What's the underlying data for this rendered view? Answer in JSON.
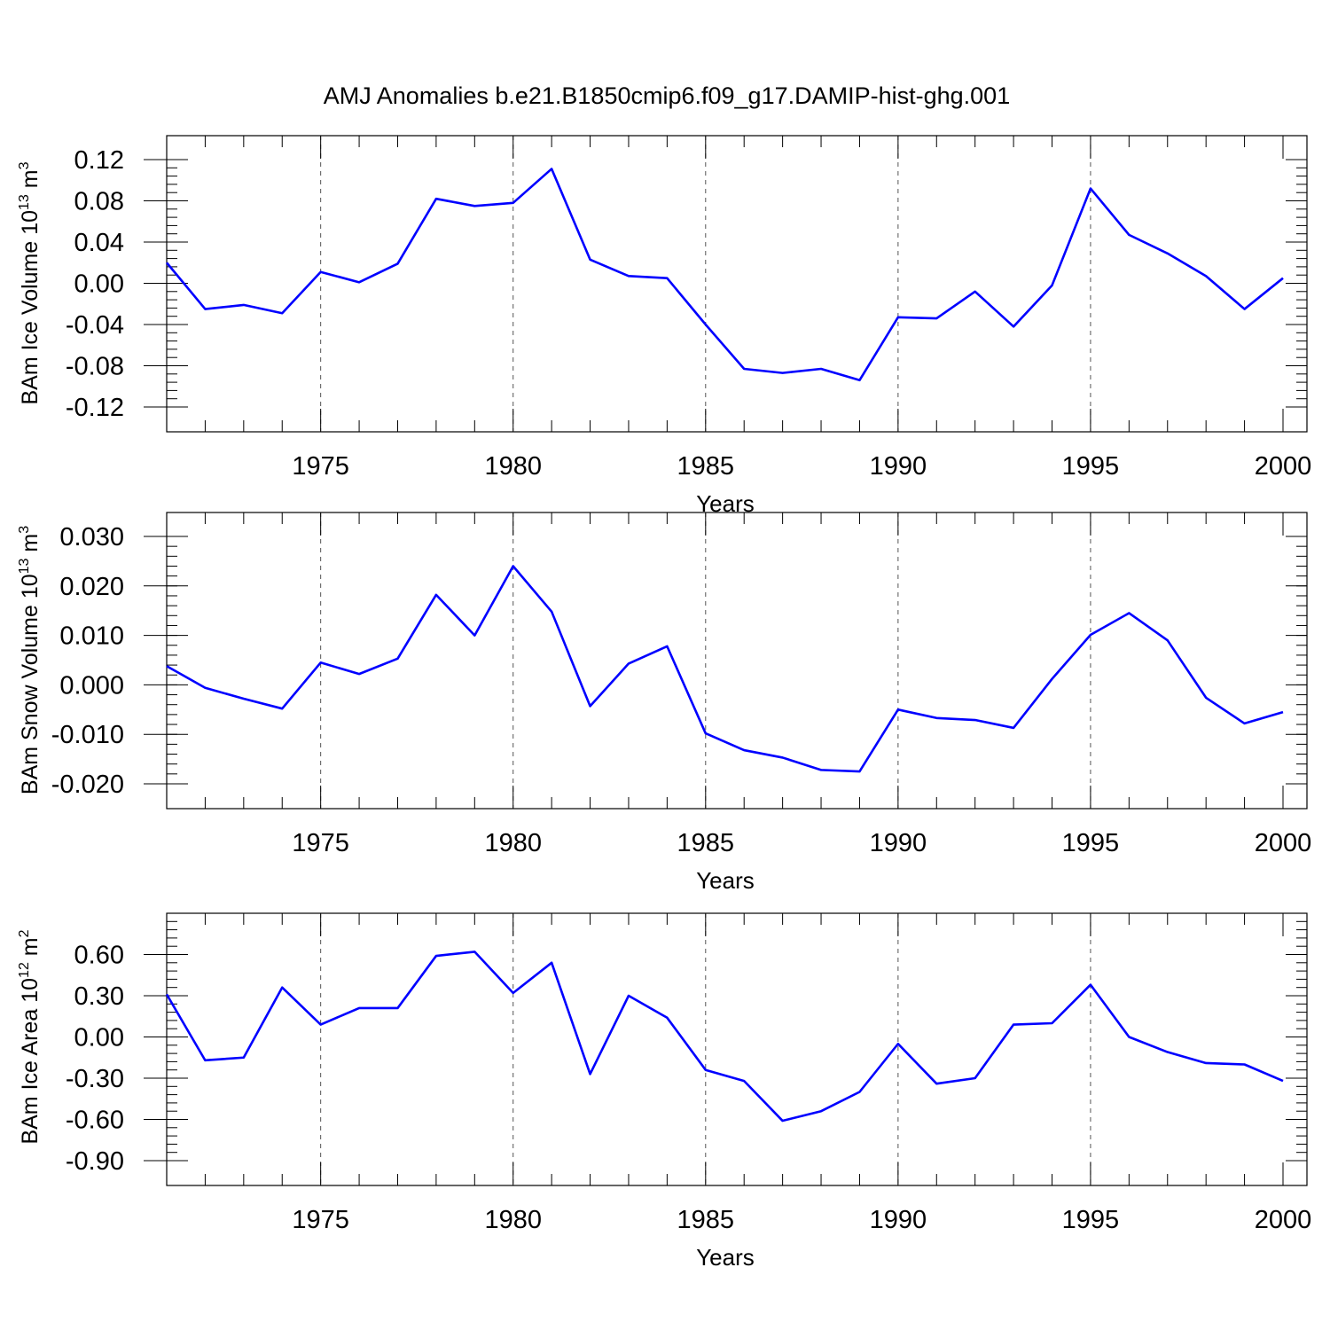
{
  "title": "AMJ Anomalies b.e21.B1850cmip6.f09_g17.DAMIP-hist-ghg.001",
  "line_color": "#0000ff",
  "chart_data": [
    {
      "type": "line",
      "ylabel": "BAm Ice Volume 10",
      "ylabel_exp": "13",
      "ylabel_unit": "m",
      "ylabel_unit_exp": "3",
      "xlabel": "Years",
      "xlim": [
        1971,
        2000
      ],
      "ylim": [
        -0.12,
        0.12
      ],
      "xticks": [
        "1975",
        "1980",
        "1985",
        "1990",
        "1995",
        "2000"
      ],
      "yticks": [
        "0.12",
        "0.08",
        "0.04",
        "0.00",
        "-0.04",
        "-0.08",
        "-0.12"
      ],
      "grid": "dashed vertical lines at major x ticks",
      "series": [
        {
          "x": [
            1971,
            1972,
            1973,
            1974,
            1975,
            1976,
            1977,
            1978,
            1979,
            1980,
            1981,
            1982,
            1983,
            1984,
            1985,
            1986,
            1987,
            1988,
            1989,
            1990,
            1991,
            1992,
            1993,
            1994,
            1995,
            1996,
            1997,
            1998,
            1999,
            2000
          ],
          "values": [
            0.02,
            -0.025,
            -0.021,
            -0.029,
            0.011,
            0.001,
            0.019,
            0.082,
            0.075,
            0.078,
            0.111,
            0.023,
            0.007,
            0.005,
            -0.04,
            -0.083,
            -0.087,
            -0.083,
            -0.094,
            -0.033,
            -0.034,
            -0.008,
            -0.042,
            -0.002,
            0.092,
            0.047,
            0.029,
            0.007,
            -0.025,
            0.005
          ]
        }
      ]
    },
    {
      "type": "line",
      "ylabel": "BAm Snow Volume 10",
      "ylabel_exp": "13",
      "ylabel_unit": "m",
      "ylabel_unit_exp": "3",
      "xlabel": "Years",
      "xlim": [
        1971,
        2000
      ],
      "ylim": [
        -0.02,
        0.03
      ],
      "xticks": [
        "1975",
        "1980",
        "1985",
        "1990",
        "1995",
        "2000"
      ],
      "yticks": [
        "0.030",
        "0.020",
        "0.010",
        "0.000",
        "-0.010",
        "-0.020"
      ],
      "grid": "dashed vertical lines at major x ticks",
      "series": [
        {
          "x": [
            1971,
            1972,
            1973,
            1974,
            1975,
            1976,
            1977,
            1978,
            1979,
            1980,
            1981,
            1982,
            1983,
            1984,
            1985,
            1986,
            1987,
            1988,
            1989,
            1990,
            1991,
            1992,
            1993,
            1994,
            1995,
            1996,
            1997,
            1998,
            1999,
            2000
          ],
          "values": [
            0.0038,
            -0.0006,
            -0.0028,
            -0.0048,
            0.0045,
            0.0022,
            0.0053,
            0.0182,
            0.01,
            0.024,
            0.0148,
            -0.0043,
            0.0043,
            0.0078,
            -0.0098,
            -0.0132,
            -0.0147,
            -0.0172,
            -0.0175,
            -0.005,
            -0.0067,
            -0.0071,
            -0.0087,
            0.0012,
            0.0101,
            0.0145,
            0.009,
            -0.0026,
            -0.0078,
            -0.0055
          ]
        }
      ]
    },
    {
      "type": "line",
      "ylabel": "BAm Ice Area 10",
      "ylabel_exp": "12",
      "ylabel_unit": "m",
      "ylabel_unit_exp": "2",
      "xlabel": "Years",
      "xlim": [
        1971,
        2000
      ],
      "ylim": [
        -0.9,
        0.9
      ],
      "xticks": [
        "1975",
        "1980",
        "1985",
        "1990",
        "1995",
        "2000"
      ],
      "yticks": [
        "0.60",
        "0.30",
        "0.00",
        "-0.30",
        "-0.60",
        "-0.90"
      ],
      "grid": "dashed vertical lines at major x ticks",
      "series": [
        {
          "x": [
            1971,
            1972,
            1973,
            1974,
            1975,
            1976,
            1977,
            1978,
            1979,
            1980,
            1981,
            1982,
            1983,
            1984,
            1985,
            1986,
            1987,
            1988,
            1989,
            1990,
            1991,
            1992,
            1993,
            1994,
            1995,
            1996,
            1997,
            1998,
            1999,
            2000
          ],
          "values": [
            0.31,
            -0.17,
            -0.15,
            0.36,
            0.09,
            0.21,
            0.21,
            0.59,
            0.62,
            0.32,
            0.54,
            -0.27,
            0.3,
            0.14,
            -0.24,
            -0.32,
            -0.61,
            -0.54,
            -0.4,
            -0.05,
            -0.34,
            -0.3,
            0.09,
            0.1,
            0.38,
            0.0,
            -0.11,
            -0.19,
            -0.2,
            -0.32
          ]
        }
      ]
    }
  ]
}
